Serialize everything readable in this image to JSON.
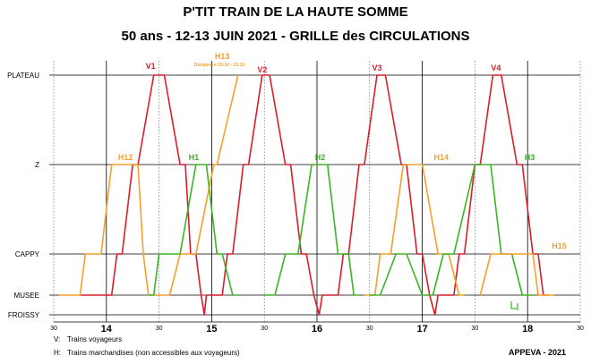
{
  "title_line1": "P'TIT TRAIN DE LA HAUTE SOMME",
  "title_line2": "50 ans - 12-13 JUIN 2021 - GRILLE des CIRCULATIONS",
  "credit": "APPEVA - 2021",
  "legend": [
    {
      "key": "V",
      "text": "Trains voyageurs"
    },
    {
      "key": "H",
      "text": "Trains marchandises (non accessibles aux voyageurs)"
    }
  ],
  "annotation": {
    "text": "Dompierre 15:14 - 15:15"
  },
  "colors": {
    "V": "#d81e2c",
    "H13": "#f5a02a",
    "H12": "#f5a02a",
    "H14": "#f5a02a",
    "H15": "#f5a02a",
    "H": "#3ab522",
    "grid": "#000000",
    "arrow": "#3ab522"
  },
  "chart_data": {
    "type": "line",
    "title": "P'TIT TRAIN DE LA HAUTE SOMME",
    "subtitle": "50 ans - 12-13 JUIN 2021 - GRILLE des CIRCULATIONS",
    "x_unit": "hours",
    "xlim": [
      13.5,
      18.5
    ],
    "x_ticks": [
      {
        "x": 13.5,
        "label": "30",
        "major": false
      },
      {
        "x": 14.0,
        "label": "14",
        "major": true
      },
      {
        "x": 14.5,
        "label": "30",
        "major": false
      },
      {
        "x": 15.0,
        "label": "15",
        "major": true
      },
      {
        "x": 15.5,
        "label": "30",
        "major": false
      },
      {
        "x": 16.0,
        "label": "16",
        "major": true
      },
      {
        "x": 16.5,
        "label": "30",
        "major": false
      },
      {
        "x": 17.0,
        "label": "17",
        "major": true
      },
      {
        "x": 17.5,
        "label": "30",
        "major": false
      },
      {
        "x": 18.0,
        "label": "18",
        "major": true
      },
      {
        "x": 18.5,
        "label": "30",
        "major": false
      }
    ],
    "stations": [
      {
        "name": "PLATEAU",
        "pos": 0
      },
      {
        "name": "Z",
        "pos": 1
      },
      {
        "name": "CAPPY",
        "pos": 2
      },
      {
        "name": "MUSEE",
        "pos": 2.45
      },
      {
        "name": "FROISSY",
        "pos": 2.7
      }
    ],
    "series": [
      {
        "name": "V1",
        "color_key": "V",
        "points": [
          [
            13.75,
            2.45
          ],
          [
            14.05,
            2.45
          ],
          [
            14.1,
            2.0
          ],
          [
            14.15,
            2.0
          ],
          [
            14.25,
            1.0
          ],
          [
            14.3,
            1.0
          ],
          [
            14.45,
            0
          ],
          [
            14.55,
            0
          ],
          [
            14.7,
            1.0
          ],
          [
            14.75,
            1.0
          ],
          [
            14.8,
            2.0
          ],
          [
            14.85,
            2.0
          ],
          [
            14.9,
            2.45
          ],
          [
            14.93,
            2.7
          ],
          [
            14.95,
            2.45
          ],
          [
            15.02,
            2.45
          ]
        ]
      },
      {
        "name": "V2",
        "color_key": "V",
        "points": [
          [
            15.02,
            2.45
          ],
          [
            15.1,
            2.45
          ],
          [
            15.15,
            2.0
          ],
          [
            15.2,
            2.0
          ],
          [
            15.3,
            1.0
          ],
          [
            15.35,
            1.0
          ],
          [
            15.48,
            0
          ],
          [
            15.55,
            0
          ],
          [
            15.7,
            1.0
          ],
          [
            15.75,
            1.0
          ],
          [
            15.85,
            2.0
          ],
          [
            15.9,
            2.0
          ],
          [
            15.97,
            2.45
          ],
          [
            16.02,
            2.7
          ],
          [
            16.05,
            2.45
          ],
          [
            16.1,
            2.45
          ]
        ]
      },
      {
        "name": "V3",
        "color_key": "V",
        "points": [
          [
            16.1,
            2.45
          ],
          [
            16.2,
            2.45
          ],
          [
            16.25,
            2.0
          ],
          [
            16.3,
            2.0
          ],
          [
            16.4,
            1.0
          ],
          [
            16.45,
            1.0
          ],
          [
            16.57,
            0
          ],
          [
            16.65,
            0
          ],
          [
            16.8,
            1.0
          ],
          [
            16.85,
            1.0
          ],
          [
            16.95,
            2.0
          ],
          [
            17.0,
            2.0
          ],
          [
            17.07,
            2.45
          ],
          [
            17.12,
            2.7
          ],
          [
            17.15,
            2.45
          ],
          [
            17.2,
            2.45
          ]
        ]
      },
      {
        "name": "V4",
        "color_key": "V",
        "points": [
          [
            17.2,
            2.45
          ],
          [
            17.3,
            2.45
          ],
          [
            17.35,
            2.0
          ],
          [
            17.4,
            2.0
          ],
          [
            17.5,
            1.0
          ],
          [
            17.55,
            1.0
          ],
          [
            17.67,
            0
          ],
          [
            17.75,
            0
          ],
          [
            17.9,
            1.0
          ],
          [
            17.95,
            1.0
          ],
          [
            18.05,
            2.0
          ],
          [
            18.1,
            2.0
          ],
          [
            18.15,
            2.45
          ],
          [
            18.2,
            2.45
          ]
        ]
      },
      {
        "name": "H12",
        "color_key": "H12",
        "points": [
          [
            13.55,
            2.45
          ],
          [
            13.75,
            2.45
          ],
          [
            13.8,
            2.0
          ],
          [
            13.95,
            2.0
          ],
          [
            14.05,
            1.0
          ],
          [
            14.3,
            1.0
          ],
          [
            14.35,
            2.0
          ],
          [
            14.4,
            2.45
          ],
          [
            14.5,
            2.45
          ]
        ]
      },
      {
        "name": "H13",
        "color_key": "H13",
        "points": [
          [
            14.5,
            2.45
          ],
          [
            14.6,
            2.45
          ],
          [
            14.7,
            2.0
          ],
          [
            14.85,
            2.0
          ],
          [
            15.02,
            1.0
          ],
          [
            15.05,
            1.0
          ],
          [
            15.25,
            0
          ]
        ]
      },
      {
        "name": "H1",
        "color_key": "H",
        "points": [
          [
            14.4,
            2.45
          ],
          [
            14.45,
            2.45
          ],
          [
            14.5,
            2.0
          ],
          [
            14.7,
            2.0
          ],
          [
            14.85,
            1.0
          ],
          [
            14.95,
            1.0
          ],
          [
            15.05,
            2.0
          ],
          [
            15.1,
            2.0
          ],
          [
            15.2,
            2.45
          ],
          [
            15.25,
            2.45
          ]
        ]
      },
      {
        "name": "H2",
        "color_key": "H",
        "points": [
          [
            15.5,
            2.45
          ],
          [
            15.6,
            2.45
          ],
          [
            15.7,
            2.0
          ],
          [
            15.82,
            2.0
          ],
          [
            15.95,
            1.0
          ],
          [
            16.1,
            1.0
          ],
          [
            16.2,
            2.0
          ],
          [
            16.3,
            2.0
          ],
          [
            16.35,
            2.45
          ],
          [
            16.4,
            2.45
          ]
        ]
      },
      {
        "name": "H14",
        "color_key": "H14",
        "points": [
          [
            16.45,
            2.45
          ],
          [
            16.55,
            2.45
          ],
          [
            16.6,
            2.0
          ],
          [
            16.7,
            2.0
          ],
          [
            16.82,
            1.0
          ],
          [
            17.0,
            1.0
          ],
          [
            17.15,
            2.0
          ],
          [
            17.25,
            2.0
          ],
          [
            17.35,
            2.45
          ],
          [
            17.4,
            2.45
          ]
        ]
      },
      {
        "name": "H3",
        "color_key": "H",
        "points": [
          [
            16.5,
            2.45
          ],
          [
            16.6,
            2.45
          ],
          [
            16.75,
            2.0
          ],
          [
            16.85,
            2.0
          ],
          [
            17.0,
            2.45
          ],
          [
            17.1,
            2.45
          ],
          [
            17.2,
            2.0
          ],
          [
            17.3,
            2.0
          ],
          [
            17.5,
            1.0
          ],
          [
            17.65,
            1.0
          ],
          [
            17.75,
            2.0
          ],
          [
            17.85,
            2.0
          ],
          [
            17.95,
            2.45
          ],
          [
            18.05,
            2.45
          ]
        ]
      },
      {
        "name": "H15",
        "color_key": "H15",
        "points": [
          [
            17.55,
            2.45
          ],
          [
            17.65,
            2.0
          ],
          [
            17.85,
            2.0
          ],
          [
            18.05,
            2.0
          ],
          [
            18.1,
            2.45
          ],
          [
            18.25,
            2.45
          ]
        ]
      }
    ],
    "labels": [
      {
        "text": "V1",
        "x": 14.42,
        "pos": -0.07,
        "color_key": "V"
      },
      {
        "text": "V2",
        "x": 15.48,
        "pos": -0.03,
        "color_key": "V"
      },
      {
        "text": "V3",
        "x": 16.57,
        "pos": -0.05,
        "color_key": "V"
      },
      {
        "text": "V4",
        "x": 17.7,
        "pos": -0.05,
        "color_key": "V"
      },
      {
        "text": "H13",
        "x": 15.1,
        "pos": -0.18,
        "color_key": "H13"
      },
      {
        "text": "H12",
        "x": 14.18,
        "pos": 0.95,
        "color_key": "H12"
      },
      {
        "text": "H1",
        "x": 14.83,
        "pos": 0.95,
        "color_key": "H"
      },
      {
        "text": "H2",
        "x": 16.03,
        "pos": 0.95,
        "color_key": "H"
      },
      {
        "text": "H14",
        "x": 17.18,
        "pos": 0.95,
        "color_key": "H14"
      },
      {
        "text": "H3",
        "x": 18.02,
        "pos": 0.95,
        "color_key": "H"
      },
      {
        "text": "H15",
        "x": 18.3,
        "pos": 1.94,
        "color_key": "H15"
      }
    ]
  }
}
